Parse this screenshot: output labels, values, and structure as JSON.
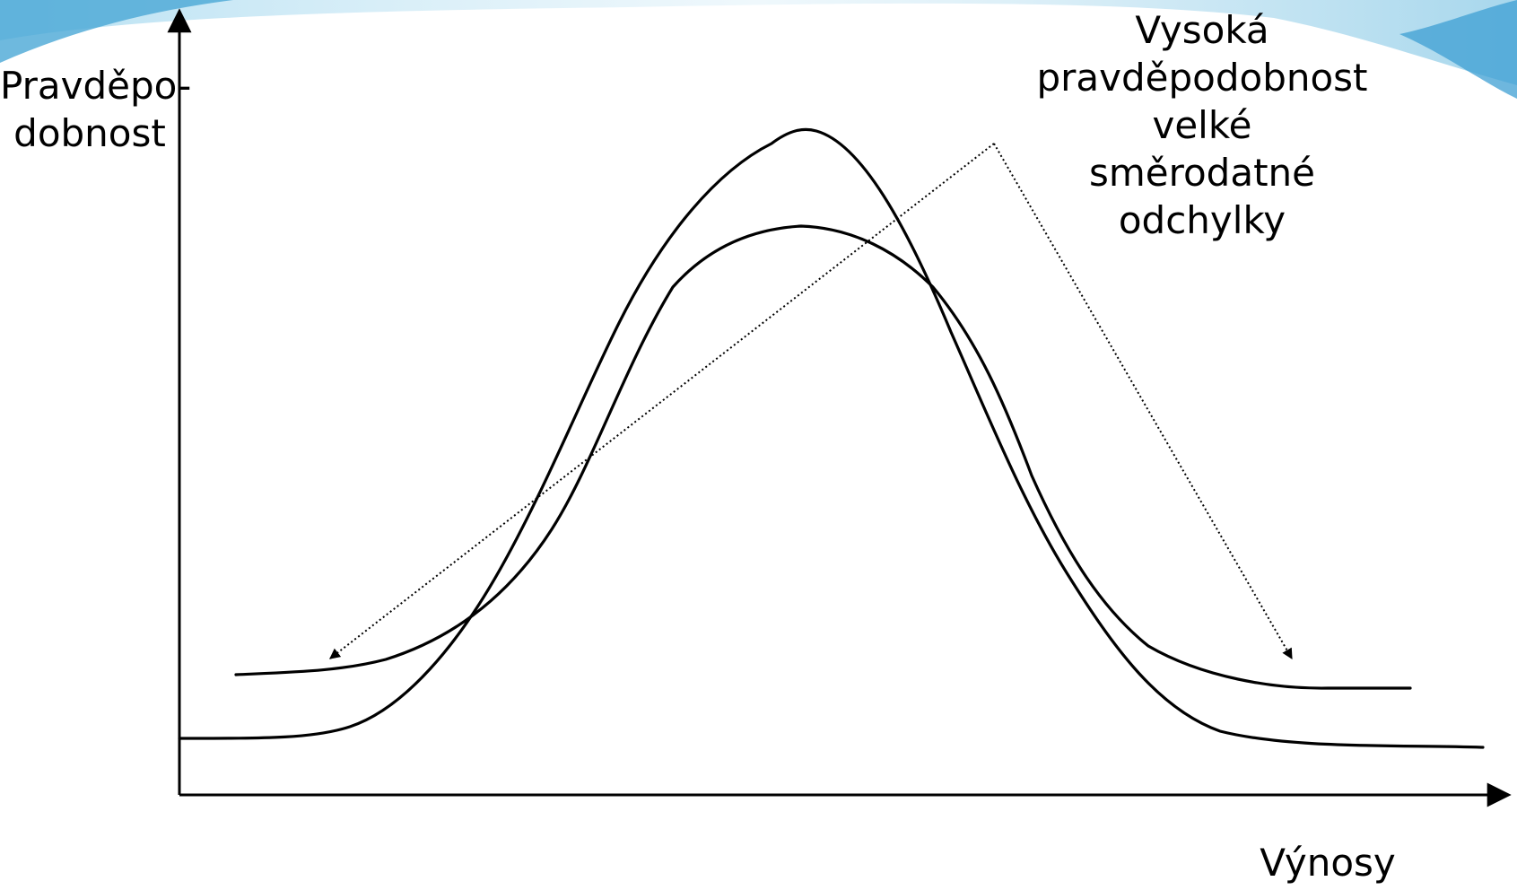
{
  "labels": {
    "y_axis": [
      "Pravděpo-",
      "dobnost"
    ],
    "x_axis": "Výnosy",
    "annotation": [
      "Vysoká",
      "pravděpodobnost",
      "velké",
      "směrodatné",
      "odchylky"
    ]
  },
  "colors": {
    "curves": "#000000",
    "axes": "#000000",
    "arrows": "#000000",
    "banner": "#5fb6dd"
  },
  "icons": {
    "background": "blue-wave-banner"
  }
}
